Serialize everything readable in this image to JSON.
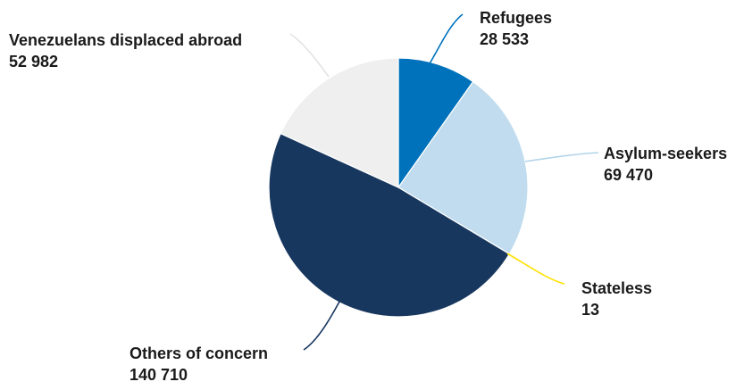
{
  "chart_data": {
    "type": "pie",
    "series": [
      {
        "name": "Refugees",
        "value": 28533,
        "value_label": "28 533",
        "color": "#0072bc"
      },
      {
        "name": "Asylum-seekers",
        "value": 69470,
        "value_label": "69 470",
        "color": "#c0dcee"
      },
      {
        "name": "Stateless",
        "value": 13,
        "value_label": "13",
        "color": "#ffe100"
      },
      {
        "name": "Others of concern",
        "value": 140710,
        "value_label": "140 710",
        "color": "#18375f"
      },
      {
        "name": "Venezuelans displaced abroad",
        "value": 52982,
        "value_label": "52 982",
        "color": "#efefef"
      }
    ]
  }
}
